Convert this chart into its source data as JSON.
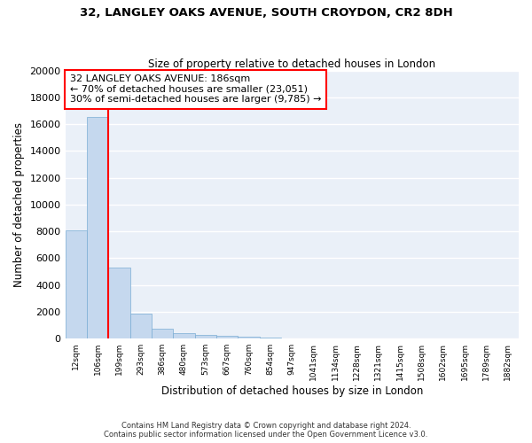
{
  "title": "32, LANGLEY OAKS AVENUE, SOUTH CROYDON, CR2 8DH",
  "subtitle": "Size of property relative to detached houses in London",
  "xlabel": "Distribution of detached houses by size in London",
  "ylabel": "Number of detached properties",
  "bar_color": "#c5d8ee",
  "bar_edge_color": "#7aadd4",
  "background_color": "#eaf0f8",
  "grid_color": "#ffffff",
  "categories": [
    "12sqm",
    "106sqm",
    "199sqm",
    "293sqm",
    "386sqm",
    "480sqm",
    "573sqm",
    "667sqm",
    "760sqm",
    "854sqm",
    "947sqm",
    "1041sqm",
    "1134sqm",
    "1228sqm",
    "1321sqm",
    "1415sqm",
    "1508sqm",
    "1602sqm",
    "1695sqm",
    "1789sqm",
    "1882sqm"
  ],
  "values": [
    8100,
    16550,
    5300,
    1850,
    700,
    380,
    280,
    205,
    150,
    80,
    15,
    5,
    0,
    0,
    0,
    0,
    0,
    0,
    0,
    0,
    0
  ],
  "ylim": [
    0,
    20000
  ],
  "yticks": [
    0,
    2000,
    4000,
    6000,
    8000,
    10000,
    12000,
    14000,
    16000,
    18000,
    20000
  ],
  "redline_x": 1.5,
  "annotation_line1": "32 LANGLEY OAKS AVENUE: 186sqm",
  "annotation_line2": "← 70% of detached houses are smaller (23,051)",
  "annotation_line3": "30% of semi-detached houses are larger (9,785) →",
  "footer1": "Contains HM Land Registry data © Crown copyright and database right 2024.",
  "footer2": "Contains public sector information licensed under the Open Government Licence v3.0."
}
